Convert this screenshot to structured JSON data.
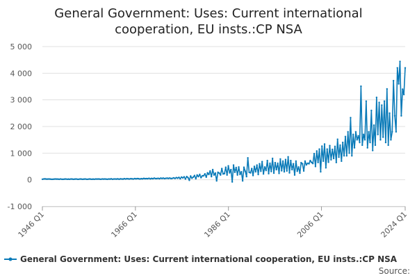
{
  "chart_data": {
    "type": "line",
    "title_lines": [
      "General Government: Uses: Current international",
      "cooperation, EU insts.:CP NSA"
    ],
    "xlabel": "",
    "ylabel": "",
    "x_range": [
      "1946 Q1",
      "2024 Q1"
    ],
    "x_tick_labels": [
      "1946 Q1",
      "1966 Q1",
      "1986 Q1",
      "2006 Q1",
      "2024 Q1"
    ],
    "y_ticks": [
      -1000,
      0,
      1000,
      2000,
      3000,
      4000,
      5000
    ],
    "y_tick_labels": [
      "-1 000",
      "0",
      "1 000",
      "2 000",
      "3 000",
      "4 000",
      "5 000"
    ],
    "ylim": [
      -1000,
      5000
    ],
    "grid": true,
    "legend_position": "bottom",
    "series": [
      {
        "name": "General Government: Uses: Current international cooperation, EU insts.:CP NSA",
        "color": "#0a7ab8",
        "x_start_year": 1946,
        "frequency": "quarterly",
        "annual_quarterly_values": [
          [
            20,
            30,
            35,
            25
          ],
          [
            25,
            30,
            25,
            20
          ],
          [
            20,
            25,
            30,
            25
          ],
          [
            25,
            20,
            30,
            20
          ],
          [
            20,
            25,
            30,
            20
          ],
          [
            25,
            20,
            30,
            25
          ],
          [
            20,
            25,
            30,
            20
          ],
          [
            20,
            30,
            25,
            20
          ],
          [
            25,
            30,
            20,
            20
          ],
          [
            30,
            25,
            20,
            25
          ],
          [
            20,
            30,
            25,
            30
          ],
          [
            25,
            20,
            30,
            25
          ],
          [
            30,
            25,
            20,
            30
          ],
          [
            25,
            35,
            20,
            30
          ],
          [
            30,
            25,
            35,
            20
          ],
          [
            35,
            30,
            25,
            40
          ],
          [
            30,
            40,
            35,
            30
          ],
          [
            40,
            35,
            30,
            45
          ],
          [
            35,
            45,
            40,
            30
          ],
          [
            40,
            35,
            50,
            40
          ],
          [
            45,
            40,
            55,
            35
          ],
          [
            50,
            40,
            60,
            45
          ],
          [
            45,
            55,
            40,
            60
          ],
          [
            50,
            60,
            45,
            55
          ],
          [
            60,
            50,
            65,
            45
          ],
          [
            55,
            70,
            50,
            80
          ],
          [
            60,
            90,
            40,
            100
          ],
          [
            70,
            110,
            30,
            120
          ],
          [
            80,
            -20,
            140,
            60
          ],
          [
            100,
            160,
            40,
            180
          ],
          [
            120,
            200,
            80,
            150
          ],
          [
            150,
            220,
            100,
            260
          ],
          [
            200,
            330,
            120,
            380
          ],
          [
            180,
            250,
            -40,
            280
          ],
          [
            250,
            180,
            420,
            220
          ],
          [
            230,
            470,
            180,
            520
          ],
          [
            260,
            380,
            -80,
            550
          ],
          [
            280,
            460,
            180,
            480
          ],
          [
            200,
            300,
            -40,
            470
          ],
          [
            320,
            120,
            820,
            280
          ],
          [
            260,
            420,
            160,
            500
          ],
          [
            300,
            550,
            200,
            600
          ],
          [
            320,
            680,
            220,
            480
          ],
          [
            350,
            720,
            230,
            620
          ],
          [
            310,
            800,
            250,
            640
          ],
          [
            380,
            620,
            240,
            780
          ],
          [
            340,
            700,
            300,
            760
          ],
          [
            330,
            860,
            260,
            720
          ],
          [
            380,
            600,
            180,
            700
          ],
          [
            320,
            480,
            250,
            640
          ],
          [
            600,
            330,
            700,
            560
          ],
          [
            620,
            600,
            720,
            650
          ],
          [
            610,
            980,
            500,
            1080
          ],
          [
            650,
            1150,
            300,
            1260
          ],
          [
            700,
            1340,
            450,
            1150
          ],
          [
            660,
            1280,
            750,
            1140
          ],
          [
            800,
            1250,
            650,
            1520
          ],
          [
            850,
            1300,
            700,
            1400
          ],
          [
            900,
            1620,
            900,
            1800
          ],
          [
            1000,
            2330,
            900,
            1700
          ],
          [
            1200,
            1800,
            1500,
            1650
          ],
          [
            1400,
            3510,
            1300,
            1700
          ],
          [
            1500,
            2950,
            1200,
            1800
          ],
          [
            1400,
            2600,
            1100,
            2050
          ],
          [
            1300,
            3090,
            1700,
            2900
          ],
          [
            1500,
            2800,
            1600,
            2950
          ],
          [
            1400,
            3410,
            1300,
            2500
          ],
          [
            1500,
            1800,
            3720,
            2400
          ],
          [
            1800,
            4200,
            3600,
            4440
          ],
          [
            2400,
            3400,
            3200,
            4200
          ]
        ]
      }
    ]
  },
  "legend": {
    "label": "General Government: Uses: Current international cooperation, EU insts.:CP NSA"
  },
  "footer": {
    "source_label": "Source:"
  }
}
